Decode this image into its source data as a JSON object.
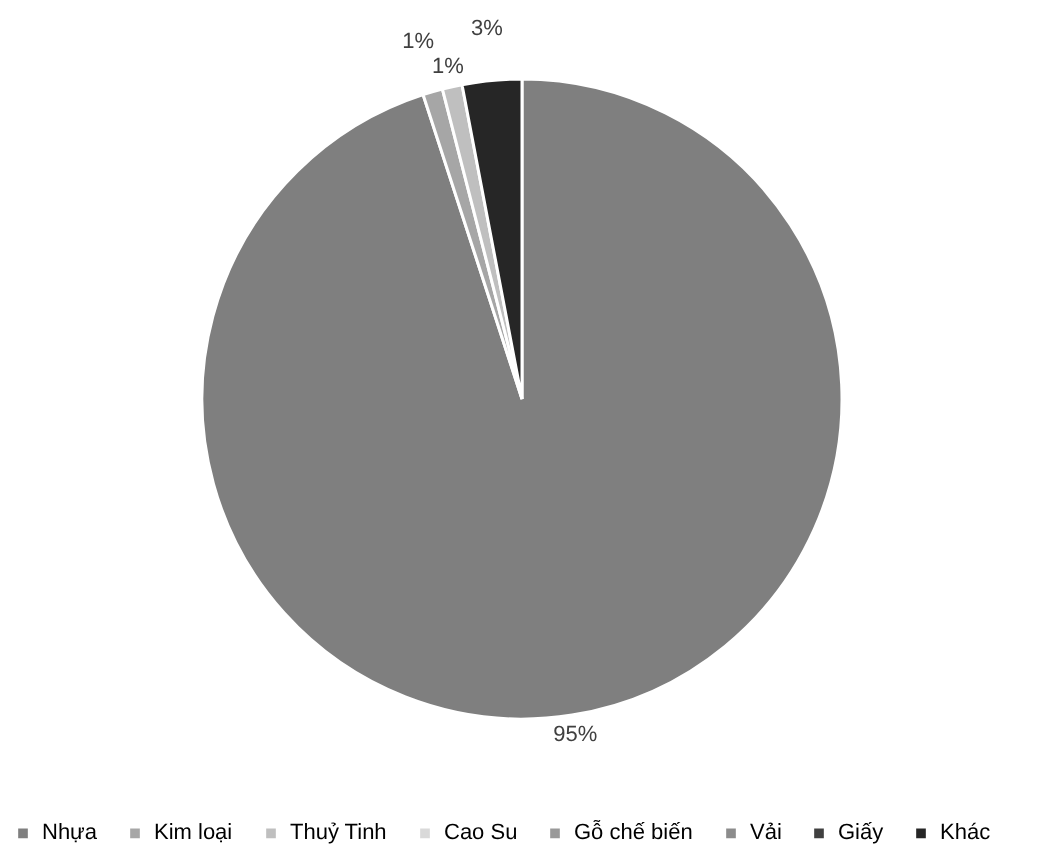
{
  "chart_data": {
    "type": "pie",
    "categories": [
      "Nhựa",
      "Kim loại",
      "Thuỷ Tinh",
      "Cao Su",
      "Gỗ chế biến",
      "Vải",
      "Giấy",
      "Khác"
    ],
    "values": [
      95,
      1,
      1,
      0,
      0,
      0,
      0,
      3
    ],
    "colors": [
      "#7f7f7f",
      "#a6a6a6",
      "#bfbfbf",
      "#d9d9d9",
      "#999999",
      "#8c8c8c",
      "#404040",
      "#262626"
    ],
    "value_labels": [
      "95%",
      "1%",
      "1%",
      null,
      null,
      null,
      null,
      "3%"
    ],
    "legend": "bottom"
  }
}
